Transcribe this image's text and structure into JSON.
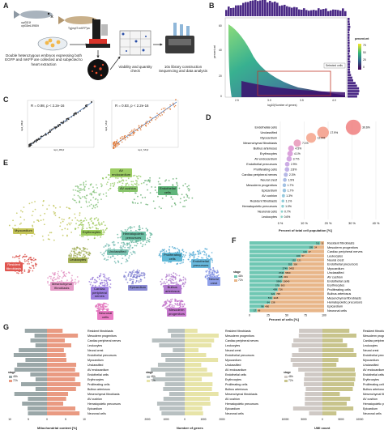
{
  "panels": {
    "A": "A",
    "B": "B",
    "C": "C",
    "D": "D",
    "E": "E",
    "F": "F",
    "G": "G"
  },
  "panelA": {
    "fish1_label": "opt31l1f\nopt33mL5980t",
    "fish2_label": "Tg(myl7:mKFP)vc",
    "caption1": "Double heterozygous embryos expressing both\nEGFP and mKFP are collected and subjected to\nheart extraction",
    "caption2": "Viability and quantity\ncheck",
    "caption3": "10x library construction\nSequencing and data analysis"
  },
  "panelB": {
    "ylabel": "percent.mt",
    "xlabel": "log10(Number of genes)",
    "xticks": [
      "2.5",
      "3.0",
      "3.5",
      "4.0"
    ],
    "yticks": [
      "0",
      "20",
      "40",
      "60"
    ],
    "legend_title": "percent.mt",
    "legend_values": [
      "75",
      "50",
      "25",
      "0"
    ],
    "selected_label": "Selected cells"
  },
  "panelC": {
    "left_stat": "R = 0.98, p < 2.2e-16",
    "right_stat": "R = 0.83, p < 2.2e-16",
    "left_xlabel": "rep1_48hpf",
    "left_ylabel": "rep2_48hpf",
    "right_xlabel": "rep1_72hpf",
    "right_ylabel": "rep2_72hpf"
  },
  "panelD": {
    "xlabel": "Percent of total cell population [%]",
    "xticks": [
      "0 %",
      "10 %",
      "20 %",
      "30 %",
      "40 %"
    ]
  },
  "panelF": {
    "xlabel": "Percent of cells [%]",
    "legend_title": "stage",
    "legend_items": [
      "48h",
      "72h"
    ],
    "xticks": [
      "0",
      "25",
      "50",
      "75",
      "100"
    ]
  },
  "panelG": {
    "xlabel1": "Mitochondrial content [%]",
    "xlabel2": "Number of genes",
    "xlabel3": "UMI count",
    "ticks1": [
      "10",
      "5",
      "0",
      "5",
      "10"
    ],
    "ticks2": [
      "2000",
      "1000",
      "0",
      "1000",
      "2000"
    ],
    "ticks3": [
      "10000",
      "5000",
      "0",
      "5000",
      "10000"
    ],
    "legend_title": "stage",
    "legend_items": [
      "48h",
      "72h"
    ]
  },
  "chart_data": [
    {
      "type": "bar",
      "title": "",
      "xlabel": "Percent of total cell population [%]",
      "categories": [
        "Endothelial cells",
        "Unclassified",
        "Myocardium",
        "Mesenchymal fibroblasts",
        "Bulbus arteriosus",
        "Erythrocytes",
        "AV endocardium",
        "Endothelial precursors",
        "Proliferating cells",
        "Cardiac peripheral nerves",
        "Neural crest",
        "Mesoderm progenitors",
        "Epicardium",
        "AV cushion",
        "Resident fibroblasts",
        "Hematopoietic precursors",
        "Neuronal cells",
        "Leukocytes"
      ],
      "values": [
        30.6,
        17.9,
        12.9,
        7.1,
        4.5,
        4.1,
        3.7,
        2.9,
        2.8,
        2.3,
        1.9,
        1.7,
        1.7,
        1.3,
        1.1,
        1.0,
        0.7,
        0.6
      ],
      "value_labels": [
        "30.6%",
        "17.9%",
        "12.9%",
        "7.1%",
        "4.5%",
        "4.1%",
        "3.7%",
        "2.9%",
        "2.8%",
        "2.3%",
        "1.9%",
        "1.7%",
        "1.7%",
        "1.3%",
        "1.1%",
        "1.0%",
        "0.7%",
        "0.6%"
      ],
      "xlim": [
        0,
        40
      ]
    },
    {
      "type": "bar",
      "xlabel": "Percent of cells [%]",
      "categories": [
        "Resident fibroblasts",
        "Mesoderm progenitors",
        "Cardiac peripheral nerves",
        "Leukocytes",
        "Neural crest",
        "Endothelial precursors",
        "Myocardium",
        "Unclassified",
        "AV cushion",
        "Endothelial cells",
        "Erythrocytes",
        "Proliferating cells",
        "Bulbus arteriosus",
        "Mesenchymal fibroblasts",
        "Hematopoietic precursors",
        "Epicardium",
        "Neuronal cells"
      ],
      "series": [
        {
          "name": "48h",
          "values": [
            95,
            86,
            78,
            69,
            63,
            58,
            52,
            47,
            45,
            44,
            41,
            38,
            35,
            31,
            28,
            20,
            10
          ]
        },
        {
          "name": "72h",
          "values": [
            5,
            14,
            22,
            31,
            37,
            42,
            48,
            53,
            55,
            56,
            59,
            62,
            65,
            69,
            72,
            80,
            90
          ]
        }
      ],
      "count_48h": [
        "311",
        "105",
        "126",
        "100",
        "152",
        "353",
        "2749",
        "3746",
        "135",
        "5990",
        "578",
        "409",
        "322",
        "572",
        "64",
        "96",
        "17"
      ],
      "count_72h": [
        "11",
        "24",
        "47",
        "57",
        "121",
        "300",
        "3402",
        "5560",
        "219",
        "10040",
        "903",
        "716",
        "735",
        "1115",
        "138",
        "400",
        "86"
      ],
      "xlim": [
        0,
        100
      ]
    }
  ],
  "e_labels": {
    "av_endo": "AV\nendocardium",
    "av_cushion": "AV cushion",
    "endothelial": "Endothelial\ncells",
    "myocardium": "Myocardium",
    "erythrocytes": "Erythrocytes",
    "hema": "Hematopoietic\nprecursors",
    "unclassified": "Unclassified",
    "leukocytes": "Leukocytes",
    "prolif": "Proliferating\ncells",
    "endo_prec": "Endothelial\nprecursors",
    "resident": "Resident\nfibroblasts",
    "mesen": "Mesenchymal\nfibroblasts",
    "epicardium": "Epicardium",
    "bulbus": "Bulbus\narteriosus",
    "neural": "Neural\ncrest",
    "cardiac_nerves": "Cardiac\nperipheral\nnerves",
    "meso": "Mesoderm\nprogenitors",
    "neuronal": "Neuronal\ncells"
  },
  "g_categories": [
    "Resident fibroblasts",
    "Mesoderm progenitors",
    "Cardiac peripheral nerves",
    "Leukocytes",
    "Neural crest",
    "Endothelial precursors",
    "Myocardium",
    "Unclassified",
    "AV endocardium",
    "Endothelial cells",
    "Erythrocytes",
    "Proliferating cells",
    "Bulbus arteriosus",
    "Mesenchymal fibroblasts",
    "AV cushion",
    "Hematopoietic precursors",
    "Epicardium",
    "Neuronal cells"
  ],
  "colors": {
    "c48": "#6fc7b3",
    "c72": "#e8b689",
    "g48": "#9aa7a8",
    "g72": "#e99a82",
    "g48b": "#b8c0c1",
    "g72b": "#e7e4a8",
    "g48c": "#cfc9c5",
    "g72c": "#c8c48c"
  }
}
